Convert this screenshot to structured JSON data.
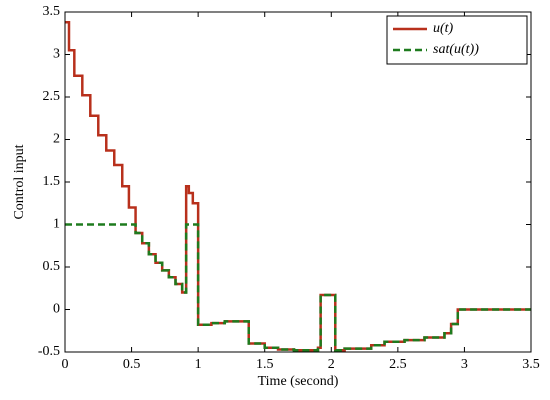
{
  "chart_data": {
    "type": "line",
    "drawstyle": "steps-post",
    "xlabel": "Time (second)",
    "ylabel": "Control input",
    "x": [
      0,
      0.03,
      0.07,
      0.13,
      0.19,
      0.25,
      0.31,
      0.37,
      0.43,
      0.48,
      0.53,
      0.58,
      0.63,
      0.68,
      0.73,
      0.78,
      0.83,
      0.88,
      0.91,
      0.93,
      0.96,
      1.0,
      1.1,
      1.2,
      1.38,
      1.5,
      1.6,
      1.72,
      1.9,
      1.92,
      2.03,
      2.1,
      2.3,
      2.4,
      2.55,
      2.7,
      2.85,
      2.9,
      2.95,
      3.5
    ],
    "series": [
      {
        "name": "u(t)",
        "color": "#b8301c",
        "dash": false,
        "values": [
          3.38,
          3.05,
          2.75,
          2.52,
          2.28,
          2.05,
          1.87,
          1.7,
          1.45,
          1.2,
          0.9,
          0.78,
          0.65,
          0.55,
          0.46,
          0.38,
          0.3,
          0.2,
          1.45,
          1.37,
          1.25,
          -0.18,
          -0.16,
          -0.14,
          -0.4,
          -0.45,
          -0.47,
          -0.48,
          -0.45,
          0.17,
          -0.48,
          -0.46,
          -0.42,
          -0.38,
          -0.36,
          -0.33,
          -0.28,
          -0.17,
          0,
          0
        ]
      },
      {
        "name": "sat(u(t))",
        "color": "#1e7b1e",
        "dash": true,
        "values": [
          1,
          1,
          1,
          1,
          1,
          1,
          1,
          1,
          1,
          1,
          0.9,
          0.78,
          0.65,
          0.55,
          0.46,
          0.38,
          0.3,
          0.2,
          1,
          1,
          1,
          -0.18,
          -0.16,
          -0.14,
          -0.4,
          -0.45,
          -0.47,
          -0.48,
          -0.45,
          0.17,
          -0.48,
          -0.46,
          -0.42,
          -0.38,
          -0.36,
          -0.33,
          -0.28,
          -0.17,
          0,
          0
        ]
      }
    ],
    "xlim": [
      0,
      3.5
    ],
    "xticks": [
      0,
      0.5,
      1,
      1.5,
      2,
      2.5,
      3,
      3.5
    ],
    "ylim": [
      -0.5,
      3.5
    ],
    "yticks": [
      -0.5,
      0,
      0.5,
      1,
      1.5,
      2,
      2.5,
      3,
      3.5
    ],
    "grid": false,
    "legend": "upper right"
  }
}
